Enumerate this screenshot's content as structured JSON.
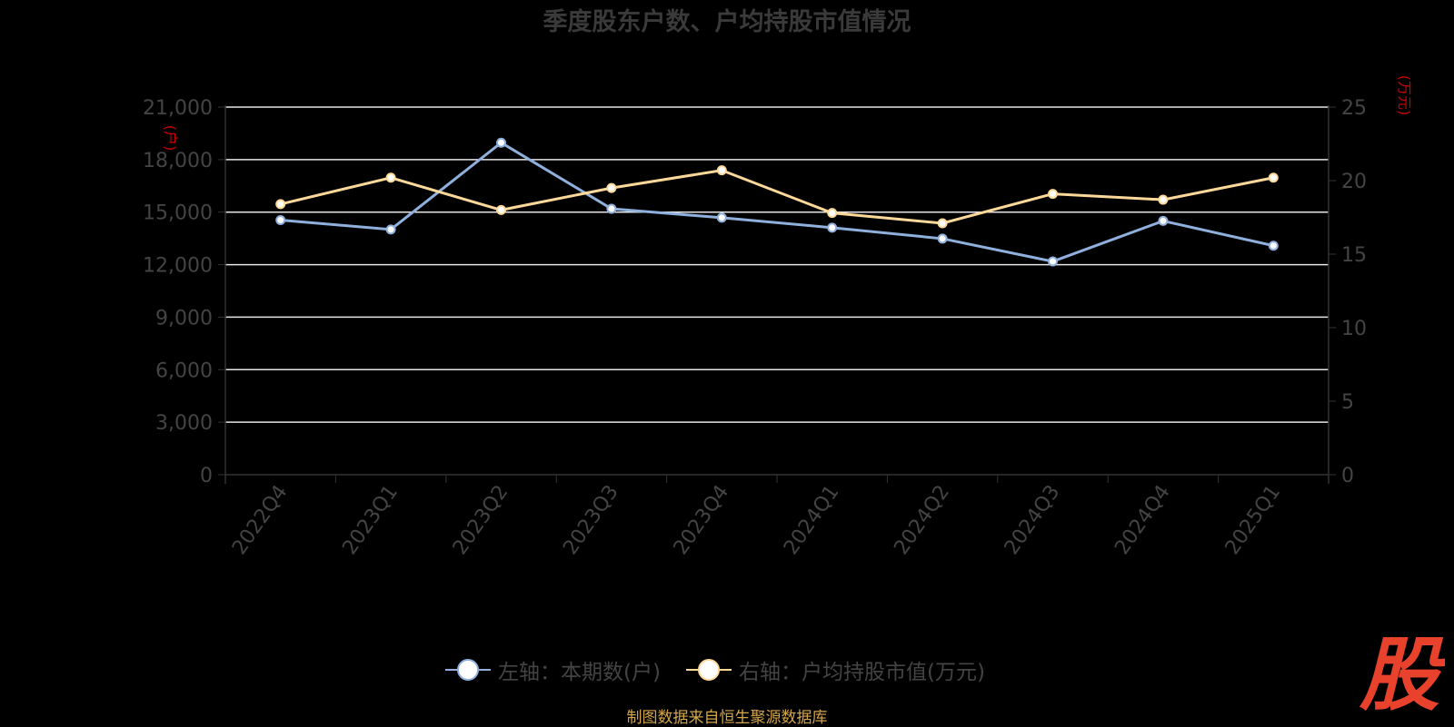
{
  "title": "季度股东户数、户均持股市值情况",
  "source": "制图数据来自恒生聚源数据库",
  "logo_text": "股",
  "colors": {
    "background": "#000000",
    "left_series": "#8fb0dc",
    "right_series": "#fcd99a",
    "grid": "#e6e6e6",
    "axis_text": "#444444",
    "unit_text": "#cc0000",
    "logo": "#e8412c"
  },
  "chart_data": {
    "type": "line",
    "title": "季度股东户数、户均持股市值情况",
    "categories": [
      "2022Q4",
      "2023Q1",
      "2023Q2",
      "2023Q3",
      "2023Q4",
      "2024Q1",
      "2024Q2",
      "2024Q3",
      "2024Q4",
      "2025Q1"
    ],
    "left_axis": {
      "unit": "(户)",
      "ylim": [
        0,
        21000
      ],
      "ticks": [
        "0",
        "3,000",
        "6,000",
        "9,000",
        "12,000",
        "15,000",
        "18,000",
        "21,000"
      ]
    },
    "right_axis": {
      "unit": "(万元)",
      "ylim": [
        0,
        25
      ],
      "ticks": [
        "0",
        "5",
        "10",
        "15",
        "20",
        "25"
      ]
    },
    "series": [
      {
        "name": "左轴：本期数(户)",
        "axis": "left",
        "values": [
          14544,
          14008,
          18967,
          15190,
          14682,
          14112,
          13485,
          12182,
          14497,
          13082
        ]
      },
      {
        "name": "右轴：户均持股市值(万元)",
        "axis": "right",
        "values": [
          18.4,
          20.2,
          18.0,
          19.5,
          20.7,
          17.8,
          17.1,
          19.1,
          18.7,
          20.2
        ]
      }
    ],
    "grid": true,
    "legend_position": "bottom"
  }
}
